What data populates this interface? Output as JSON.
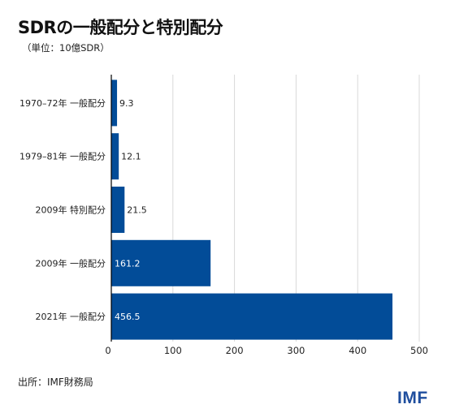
{
  "header": {
    "title": "SDRの一般配分と特別配分",
    "subtitle": "（単位：10億SDR）"
  },
  "footer": {
    "source": "出所：IMF財務局",
    "logo_text": "IMF"
  },
  "colors": {
    "bar": "#024c98",
    "grid": "#d9d9d9",
    "axis": "#000000"
  },
  "chart_data": {
    "type": "bar",
    "orientation": "horizontal",
    "categories": [
      "1970–72年 一般配分",
      "1979–81年 一般配分",
      "2009年 特別配分",
      "2009年 一般配分",
      "2021年 一般配分"
    ],
    "values": [
      9.3,
      12.1,
      21.5,
      161.2,
      456.5
    ],
    "value_labels": [
      "9.3",
      "12.1",
      "21.5",
      "161.2",
      "456.5"
    ],
    "x_ticks": [
      "0",
      "100",
      "200",
      "300",
      "400",
      "500"
    ],
    "xlim": [
      0,
      500
    ],
    "grid": true,
    "title": "SDRの一般配分と特別配分",
    "xlabel": "",
    "ylabel": ""
  }
}
